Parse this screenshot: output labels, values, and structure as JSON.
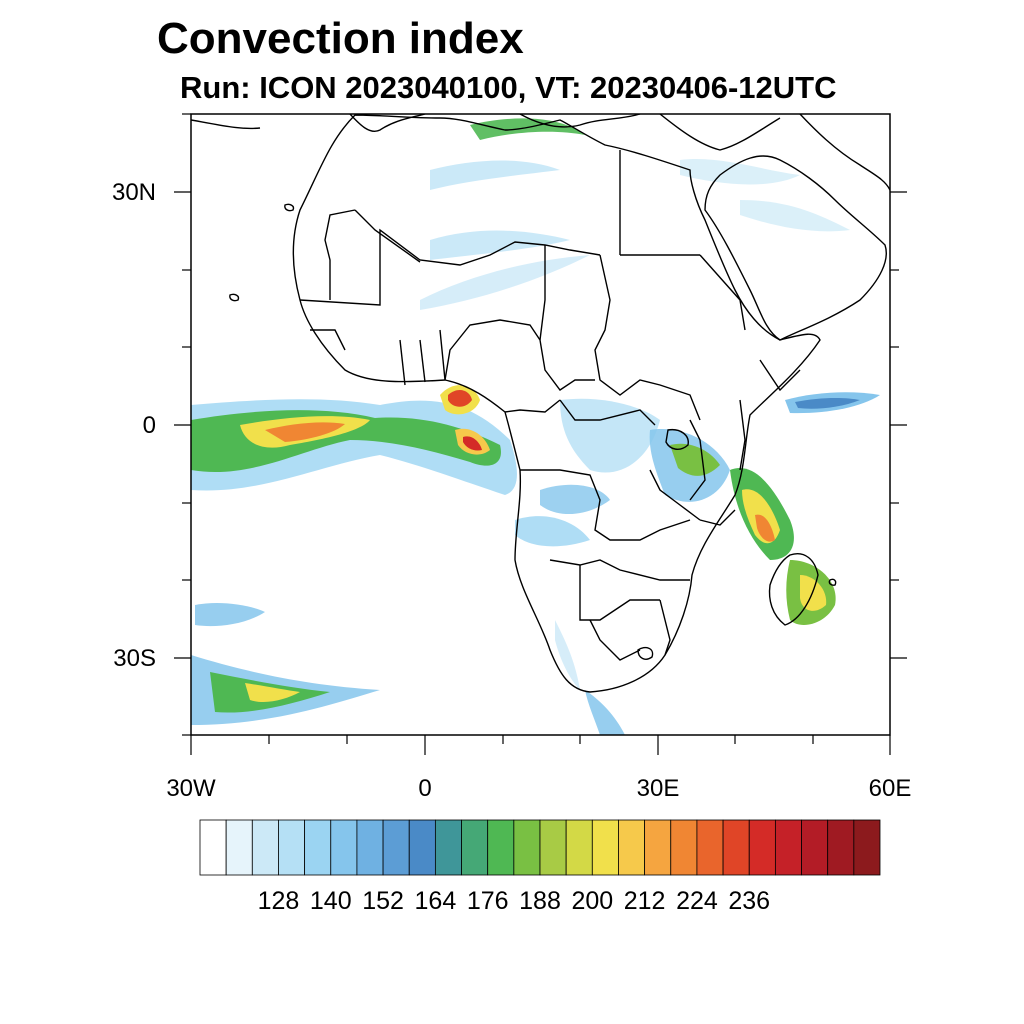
{
  "title": "Convection index",
  "subtitle": "Run: ICON 2023040100,  VT: 20230406-12UTC",
  "map": {
    "lon_range": [
      -30,
      60
    ],
    "lat_range": [
      -40,
      40
    ],
    "y_ticks": [
      "30N",
      "0",
      "30S"
    ],
    "x_ticks": [
      "30W",
      "0",
      "30E",
      "60E"
    ]
  },
  "colorbar": {
    "colors": [
      "#ffffff",
      "#e6f4fb",
      "#cce9f7",
      "#b5e0f5",
      "#9bd4f2",
      "#85c5ec",
      "#6fb1e2",
      "#5c9dd5",
      "#4a8ac7",
      "#3f9699",
      "#45a876",
      "#4fb853",
      "#79c043",
      "#a8cb45",
      "#d3d946",
      "#f1e04b",
      "#f6c94b",
      "#f5a540",
      "#f08633",
      "#e9652c",
      "#e04527",
      "#d42b27",
      "#c52128",
      "#b31c26",
      "#9f1a22",
      "#8c1a1d"
    ],
    "labels": [
      "128",
      "140",
      "152",
      "164",
      "176",
      "188",
      "200",
      "212",
      "224",
      "236"
    ]
  }
}
